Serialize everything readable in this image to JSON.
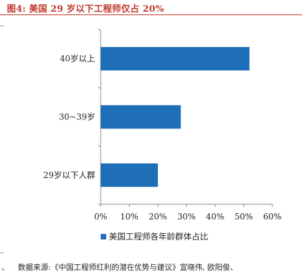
{
  "figure": {
    "title": "图4:  美国 29 岁以下工程师仅占 20%",
    "source": "数据来源:《中国工程师红利的潜在优势与建议》宣晓伟, 欧阳俊、",
    "corner_mark": "、"
  },
  "chart_data": {
    "type": "bar",
    "orientation": "horizontal",
    "categories": [
      "40岁以上",
      "30~39岁",
      "29岁以下人群"
    ],
    "series": [
      {
        "name": "美国工程师各年龄群体占比",
        "values": [
          52,
          28,
          20
        ],
        "color": "#1f6eb8"
      }
    ],
    "x_ticks": [
      "0%",
      "10%",
      "20%",
      "30%",
      "40%",
      "50%",
      "60%"
    ],
    "xlim": [
      0,
      60
    ],
    "grid": false,
    "legend_position": "bottom-center"
  }
}
